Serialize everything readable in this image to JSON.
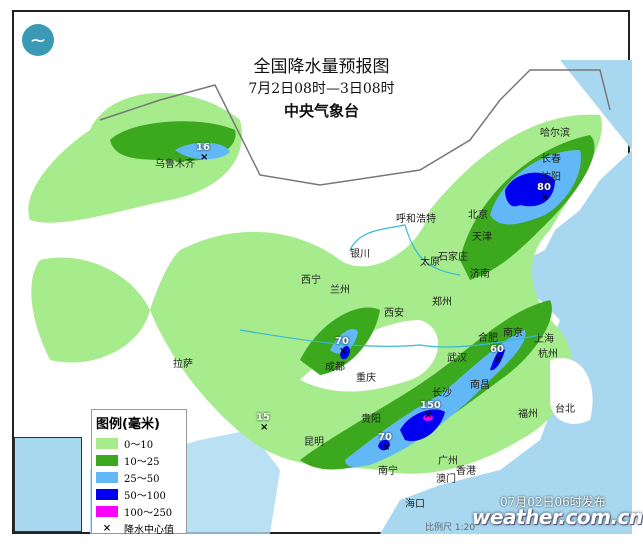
{
  "header": {
    "title": "全国降水量预报图",
    "period": "7月2日08时—3日08时",
    "issuer": "中央气象台"
  },
  "legend": {
    "title": "图例(毫米)",
    "items": [
      {
        "label": "0～10",
        "color": "#a6ec8c"
      },
      {
        "label": "10～25",
        "color": "#3ca81e"
      },
      {
        "label": "25～50",
        "color": "#62b8f6"
      },
      {
        "label": "50～100",
        "color": "#0000f0"
      },
      {
        "label": "100～250",
        "color": "#fa00fa"
      },
      {
        "label": "降水中心值",
        "symbol": "×"
      }
    ]
  },
  "cities": [
    "哈尔滨",
    "长春",
    "沈阳",
    "北京",
    "天津",
    "呼和浩特",
    "石家庄",
    "太原",
    "济南",
    "银川",
    "西宁",
    "兰州",
    "乌鲁木齐",
    "西安",
    "郑州",
    "合肥",
    "南京",
    "上海",
    "杭州",
    "武汉",
    "成都",
    "重庆",
    "长沙",
    "南昌",
    "贵阳",
    "昆明",
    "南宁",
    "广州",
    "香港",
    "澳门",
    "福州",
    "台北",
    "拉萨",
    "海口"
  ],
  "rain_centers": [
    "16",
    "80",
    "70",
    "60",
    "150",
    "70",
    "15"
  ],
  "footer": {
    "issued": "07月02日06时发布",
    "brand": "weather.com.cn",
    "scale": "比例尺 1:20"
  },
  "colors": {
    "sea": "#a8d8f0",
    "land": "#ffffff"
  }
}
